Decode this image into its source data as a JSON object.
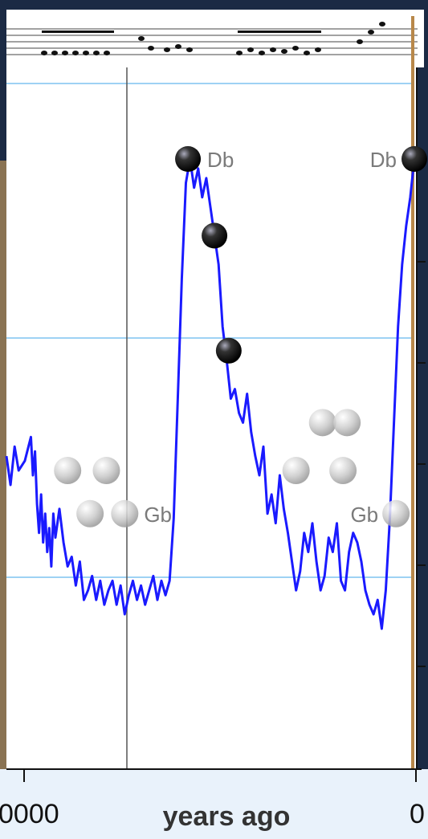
{
  "chart_data": {
    "type": "line",
    "xlabel": "years ago",
    "x_tick_labels": [
      "0000",
      "0"
    ],
    "series": [
      {
        "color": "#1a1aff",
        "points": [
          [
            0.0,
            0.62
          ],
          [
            0.01,
            0.68
          ],
          [
            0.02,
            0.6
          ],
          [
            0.03,
            0.65
          ],
          [
            0.045,
            0.63
          ],
          [
            0.06,
            0.58
          ],
          [
            0.065,
            0.66
          ],
          [
            0.07,
            0.61
          ],
          [
            0.075,
            0.72
          ],
          [
            0.08,
            0.78
          ],
          [
            0.085,
            0.7
          ],
          [
            0.09,
            0.8
          ],
          [
            0.095,
            0.74
          ],
          [
            0.1,
            0.82
          ],
          [
            0.105,
            0.77
          ],
          [
            0.11,
            0.85
          ],
          [
            0.115,
            0.74
          ],
          [
            0.12,
            0.79
          ],
          [
            0.13,
            0.73
          ],
          [
            0.14,
            0.8
          ],
          [
            0.15,
            0.85
          ],
          [
            0.16,
            0.83
          ],
          [
            0.17,
            0.89
          ],
          [
            0.18,
            0.84
          ],
          [
            0.19,
            0.92
          ],
          [
            0.2,
            0.9
          ],
          [
            0.21,
            0.87
          ],
          [
            0.22,
            0.92
          ],
          [
            0.23,
            0.88
          ],
          [
            0.24,
            0.93
          ],
          [
            0.25,
            0.9
          ],
          [
            0.26,
            0.88
          ],
          [
            0.27,
            0.93
          ],
          [
            0.28,
            0.89
          ],
          [
            0.29,
            0.95
          ],
          [
            0.3,
            0.91
          ],
          [
            0.31,
            0.88
          ],
          [
            0.32,
            0.92
          ],
          [
            0.33,
            0.89
          ],
          [
            0.34,
            0.93
          ],
          [
            0.35,
            0.9
          ],
          [
            0.36,
            0.87
          ],
          [
            0.37,
            0.92
          ],
          [
            0.38,
            0.88
          ],
          [
            0.39,
            0.91
          ],
          [
            0.4,
            0.88
          ],
          [
            0.41,
            0.75
          ],
          [
            0.42,
            0.5
          ],
          [
            0.43,
            0.25
          ],
          [
            0.44,
            0.05
          ],
          [
            0.45,
            0.0
          ],
          [
            0.46,
            0.06
          ],
          [
            0.47,
            0.02
          ],
          [
            0.48,
            0.08
          ],
          [
            0.49,
            0.04
          ],
          [
            0.5,
            0.1
          ],
          [
            0.51,
            0.16
          ],
          [
            0.52,
            0.22
          ],
          [
            0.53,
            0.35
          ],
          [
            0.54,
            0.42
          ],
          [
            0.55,
            0.5
          ],
          [
            0.56,
            0.48
          ],
          [
            0.57,
            0.53
          ],
          [
            0.58,
            0.55
          ],
          [
            0.59,
            0.49
          ],
          [
            0.6,
            0.57
          ],
          [
            0.61,
            0.62
          ],
          [
            0.62,
            0.66
          ],
          [
            0.63,
            0.6
          ],
          [
            0.64,
            0.74
          ],
          [
            0.65,
            0.7
          ],
          [
            0.66,
            0.76
          ],
          [
            0.67,
            0.66
          ],
          [
            0.68,
            0.73
          ],
          [
            0.69,
            0.78
          ],
          [
            0.7,
            0.84
          ],
          [
            0.71,
            0.9
          ],
          [
            0.72,
            0.86
          ],
          [
            0.73,
            0.78
          ],
          [
            0.74,
            0.82
          ],
          [
            0.75,
            0.76
          ],
          [
            0.76,
            0.84
          ],
          [
            0.77,
            0.9
          ],
          [
            0.78,
            0.87
          ],
          [
            0.79,
            0.79
          ],
          [
            0.8,
            0.82
          ],
          [
            0.81,
            0.76
          ],
          [
            0.82,
            0.88
          ],
          [
            0.83,
            0.9
          ],
          [
            0.84,
            0.82
          ],
          [
            0.85,
            0.78
          ],
          [
            0.86,
            0.8
          ],
          [
            0.87,
            0.84
          ],
          [
            0.88,
            0.9
          ],
          [
            0.89,
            0.93
          ],
          [
            0.9,
            0.95
          ],
          [
            0.91,
            0.92
          ],
          [
            0.92,
            0.98
          ],
          [
            0.93,
            0.9
          ],
          [
            0.94,
            0.75
          ],
          [
            0.95,
            0.55
          ],
          [
            0.96,
            0.35
          ],
          [
            0.97,
            0.22
          ],
          [
            0.98,
            0.14
          ],
          [
            0.99,
            0.08
          ],
          [
            1.0,
            0.0
          ]
        ]
      }
    ],
    "markers": [
      {
        "x": 0.445,
        "y": 0.0,
        "style": "dark",
        "label": "Db"
      },
      {
        "x": 0.51,
        "y": 0.16,
        "style": "dark",
        "label": ""
      },
      {
        "x": 0.545,
        "y": 0.4,
        "style": "dark",
        "label": ""
      },
      {
        "x": 0.15,
        "y": 0.65,
        "style": "light",
        "label": ""
      },
      {
        "x": 0.245,
        "y": 0.65,
        "style": "light",
        "label": ""
      },
      {
        "x": 0.205,
        "y": 0.74,
        "style": "light",
        "label": ""
      },
      {
        "x": 0.29,
        "y": 0.74,
        "style": "light",
        "label": "Gb"
      },
      {
        "x": 0.775,
        "y": 0.55,
        "style": "light",
        "label": ""
      },
      {
        "x": 0.835,
        "y": 0.55,
        "style": "light",
        "label": ""
      },
      {
        "x": 0.71,
        "y": 0.65,
        "style": "light",
        "label": ""
      },
      {
        "x": 0.825,
        "y": 0.65,
        "style": "light",
        "label": ""
      },
      {
        "x": 0.955,
        "y": 0.74,
        "style": "light",
        "label": "Gb"
      },
      {
        "x": 1.0,
        "y": 0.0,
        "style": "dark",
        "label": "Db"
      }
    ],
    "grid": true
  }
}
